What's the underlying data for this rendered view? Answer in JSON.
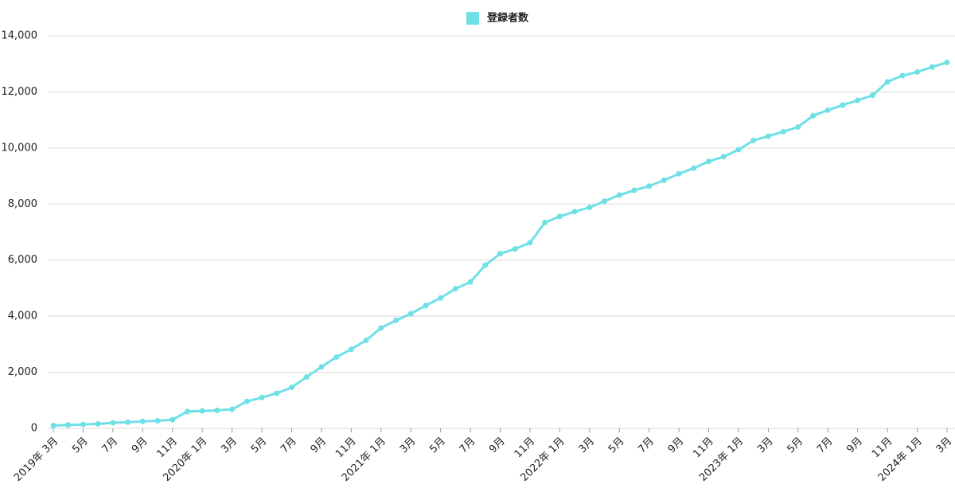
{
  "chart_data": {
    "type": "line",
    "categories": [
      "2019年 3月",
      null,
      "5月",
      null,
      "7月",
      null,
      "9月",
      null,
      "11月",
      null,
      "2020年 1月",
      null,
      "3月",
      null,
      "5月",
      null,
      "7月",
      null,
      "9月",
      null,
      "11月",
      null,
      "2021年 1月",
      null,
      "3月",
      null,
      "5月",
      null,
      "7月",
      null,
      "9月",
      null,
      "11月",
      null,
      "2022年 1月",
      null,
      "3月",
      null,
      "5月",
      null,
      "7月",
      null,
      "9月",
      null,
      "11月",
      null,
      "2023年 1月",
      null,
      "3月",
      null,
      "5月",
      null,
      "7月",
      null,
      "9月",
      null,
      "11月",
      null,
      "2024年 1月",
      null,
      "3月"
    ],
    "series": [
      {
        "name": "登録者数",
        "color": "#6fe0e6",
        "values": [
          100,
          120,
          140,
          160,
          200,
          220,
          250,
          270,
          310,
          600,
          620,
          640,
          680,
          960,
          1100,
          1250,
          1460,
          1830,
          2190,
          2540,
          2820,
          3140,
          3580,
          3850,
          4090,
          4380,
          4650,
          4980,
          5220,
          5820,
          6230,
          6400,
          6620,
          7340,
          7560,
          7730,
          7880,
          8100,
          8320,
          8490,
          8640,
          8850,
          9080,
          9280,
          9520,
          9690,
          9940,
          10270,
          10420,
          10580,
          10750,
          11150,
          11350,
          11530,
          11700,
          11880,
          12360,
          12580,
          12710,
          12890,
          13050
        ]
      }
    ],
    "ylim": [
      0,
      14000
    ],
    "yticks": [
      0,
      {
        "value": 2000,
        "label": "2,000"
      },
      {
        "value": 4000,
        "label": "4,000"
      },
      {
        "value": 6000,
        "label": "6,000"
      },
      {
        "value": 8000,
        "label": "8,000"
      },
      {
        "value": 10000,
        "label": "10,000"
      },
      {
        "value": 12000,
        "label": "12,000"
      },
      {
        "value": 14000,
        "label": "14,000"
      }
    ],
    "grid": true,
    "legend": "top"
  }
}
